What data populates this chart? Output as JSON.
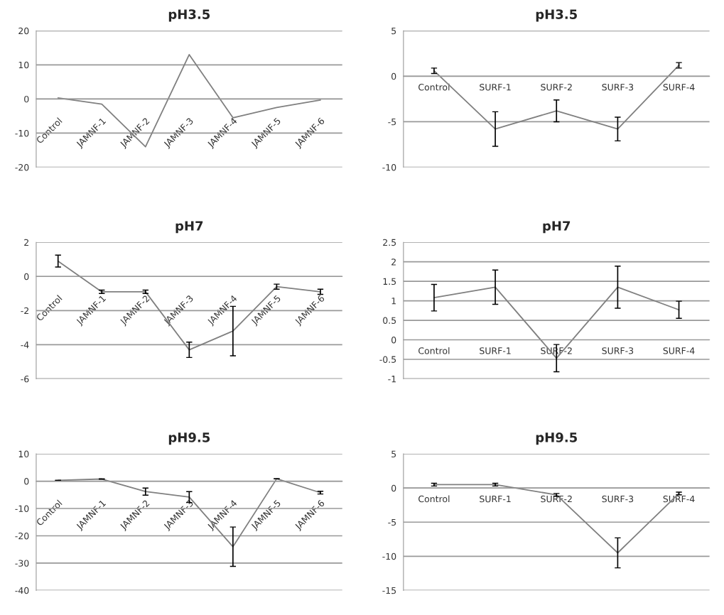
{
  "chart_data": [
    {
      "type": "line",
      "title": "pH3.5",
      "categories": [
        "Control",
        "JAMNF-1",
        "JAMNF-2",
        "JAMNF-3",
        "JAMNF-4",
        "JAMNF-5",
        "JAMNF-6"
      ],
      "series": [
        {
          "color": "#808080",
          "values": [
            0.3,
            -1.5,
            -14,
            13,
            -5.5,
            -2.5,
            -0.3
          ]
        }
      ],
      "ylim": [
        -20,
        20
      ],
      "yticks": [
        -20,
        -10,
        0,
        10,
        20
      ],
      "grid": "y",
      "marker": "none",
      "line_style": "solid"
    },
    {
      "type": "line",
      "title": "pH3.5",
      "categories": [
        "Control",
        "SURF-1",
        "SURF-2",
        "SURF-3",
        "SURF-4"
      ],
      "series": [
        {
          "color": "#808080",
          "values": [
            0.6,
            -5.8,
            -3.8,
            -5.8,
            1.2
          ],
          "errors": [
            0.3,
            1.9,
            1.2,
            1.3,
            0.3
          ]
        }
      ],
      "ylim": [
        -10,
        5
      ],
      "yticks": [
        -10,
        -5,
        0,
        5
      ],
      "grid": "y",
      "marker": "none",
      "line_style": "solid"
    },
    {
      "type": "line",
      "title": "pH7",
      "categories": [
        "Control",
        "JAMNF-1",
        "JAMNF-2",
        "JAMNF-3",
        "JAMNF-4",
        "JAMNF-5",
        "JAMNF-6"
      ],
      "series": [
        {
          "color": "#808080",
          "values": [
            0.9,
            -0.9,
            -0.9,
            -4.3,
            -3.2,
            -0.6,
            -0.9
          ],
          "errors": [
            0.35,
            0.1,
            0.1,
            0.45,
            1.45,
            0.15,
            0.15
          ]
        }
      ],
      "ylim": [
        -6,
        2
      ],
      "yticks": [
        -6,
        -4,
        -2,
        0,
        2
      ],
      "grid": "y",
      "marker": "none",
      "line_style": "solid"
    },
    {
      "type": "line",
      "title": "pH7",
      "categories": [
        "Control",
        "SURF-1",
        "SURF-2",
        "SURF-3",
        "SURF-4"
      ],
      "series": [
        {
          "color": "#808080",
          "values": [
            1.08,
            1.35,
            -0.47,
            1.35,
            0.77
          ],
          "errors": [
            0.34,
            0.44,
            0.35,
            0.54,
            0.22
          ]
        }
      ],
      "ylim": [
        -1,
        2.5
      ],
      "yticks": [
        -1,
        -0.5,
        0,
        0.5,
        1,
        1.5,
        2,
        2.5
      ],
      "grid": "y",
      "marker": "none",
      "line_style": "solid"
    },
    {
      "type": "line",
      "title": "pH9.5",
      "categories": [
        "Control",
        "JAMNF-1",
        "JAMNF-2",
        "JAMNF-3",
        "JAMNF-4",
        "JAMNF-5",
        "JAMNF-6"
      ],
      "series": [
        {
          "color": "#808080",
          "values": [
            0.3,
            0.8,
            -3.8,
            -5.8,
            -24,
            0.9,
            -4.2
          ],
          "errors": [
            null,
            null,
            1.3,
            2,
            7.2,
            null,
            0.5
          ]
        }
      ],
      "ylim": [
        -40,
        10
      ],
      "yticks": [
        -40,
        -30,
        -20,
        -10,
        0,
        10
      ],
      "grid": "y",
      "marker": "none",
      "line_style": "solid"
    },
    {
      "type": "line",
      "title": "pH9.5",
      "categories": [
        "Control",
        "SURF-1",
        "SURF-2",
        "SURF-3",
        "SURF-4"
      ],
      "series": [
        {
          "color": "#808080",
          "values": [
            0.5,
            0.5,
            -1,
            -9.5,
            -0.8
          ],
          "errors": [
            0.2,
            0.2,
            0.2,
            2.2,
            0.2
          ]
        }
      ],
      "ylim": [
        -15,
        5
      ],
      "yticks": [
        -15,
        -10,
        -5,
        0,
        5
      ],
      "grid": "y",
      "marker": "none",
      "line_style": "solid"
    }
  ]
}
